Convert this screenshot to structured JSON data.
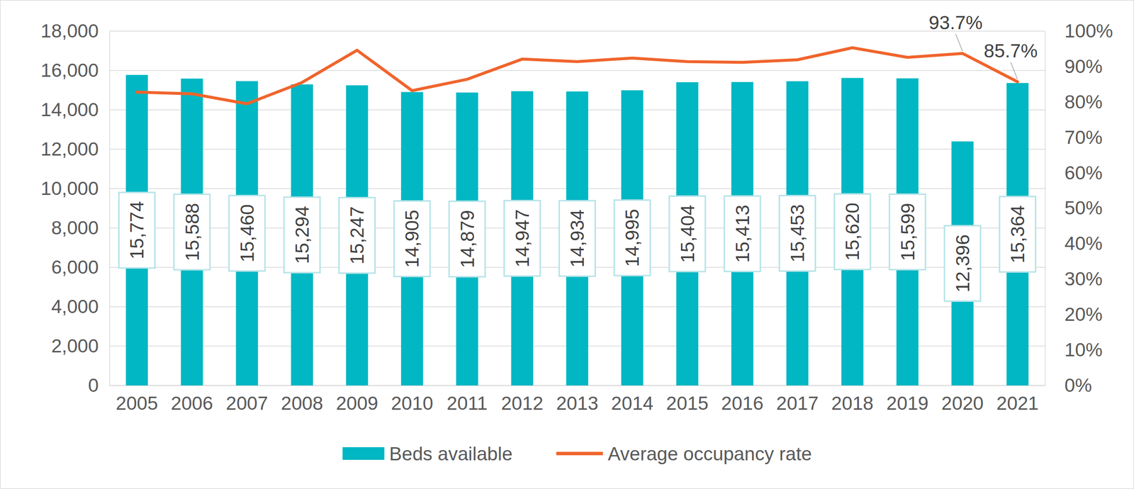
{
  "chart_data": {
    "type": "bar",
    "categories": [
      "2005",
      "2006",
      "2007",
      "2008",
      "2009",
      "2010",
      "2011",
      "2012",
      "2013",
      "2014",
      "2015",
      "2016",
      "2017",
      "2018",
      "2019",
      "2020",
      "2021"
    ],
    "series": [
      {
        "name": "Beds available",
        "type": "bar",
        "color": "#00B7C3",
        "values": [
          15774,
          15588,
          15460,
          15294,
          15247,
          14905,
          14879,
          14947,
          14934,
          14995,
          15404,
          15413,
          15453,
          15620,
          15599,
          12396,
          15364
        ],
        "value_labels": [
          "15,774",
          "15,588",
          "15,460",
          "15,294",
          "15,247",
          "14,905",
          "14,879",
          "14,947",
          "14,934",
          "14,995",
          "15,404",
          "15,413",
          "15,453",
          "15,620",
          "15,599",
          "12,396",
          "15,364"
        ]
      },
      {
        "name": "Average occupancy rate",
        "type": "line",
        "axis": "y2",
        "color": "#F0642B",
        "values": [
          82.8,
          82.3,
          79.5,
          85.5,
          94.6,
          83.2,
          86.4,
          92.1,
          91.4,
          92.4,
          91.4,
          91.2,
          91.9,
          95.3,
          92.6,
          93.7,
          85.7
        ],
        "value_labels": [
          null,
          null,
          null,
          null,
          null,
          null,
          null,
          null,
          null,
          null,
          null,
          null,
          null,
          null,
          null,
          "93.7%",
          "85.7%"
        ]
      }
    ],
    "ylim": [
      0,
      18000
    ],
    "yticks": [
      0,
      {
        "value": 2000,
        "label": "2,000"
      },
      {
        "value": 4000,
        "label": "4,000"
      },
      {
        "value": 6000,
        "label": "6,000"
      },
      {
        "value": 8000,
        "label": "8,000"
      },
      {
        "value": 10000,
        "label": "10,000"
      },
      {
        "value": 12000,
        "label": "12,000"
      },
      {
        "value": 14000,
        "label": "14,000"
      },
      {
        "value": 16000,
        "label": "16,000"
      },
      {
        "value": 18000,
        "label": "18,000"
      }
    ],
    "y2lim": [
      0,
      100
    ],
    "y2ticks": [
      {
        "value": 0,
        "label": "0%"
      },
      {
        "value": 10,
        "label": "10%"
      },
      {
        "value": 20,
        "label": "20%"
      },
      {
        "value": 30,
        "label": "30%"
      },
      {
        "value": 40,
        "label": "40%"
      },
      {
        "value": 50,
        "label": "50%"
      },
      {
        "value": 60,
        "label": "60%"
      },
      {
        "value": 70,
        "label": "70%"
      },
      {
        "value": 80,
        "label": "80%"
      },
      {
        "value": 90,
        "label": "90%"
      },
      {
        "value": 100,
        "label": "100%"
      }
    ],
    "grid": true,
    "legend": "bottom",
    "data_labels": true
  }
}
